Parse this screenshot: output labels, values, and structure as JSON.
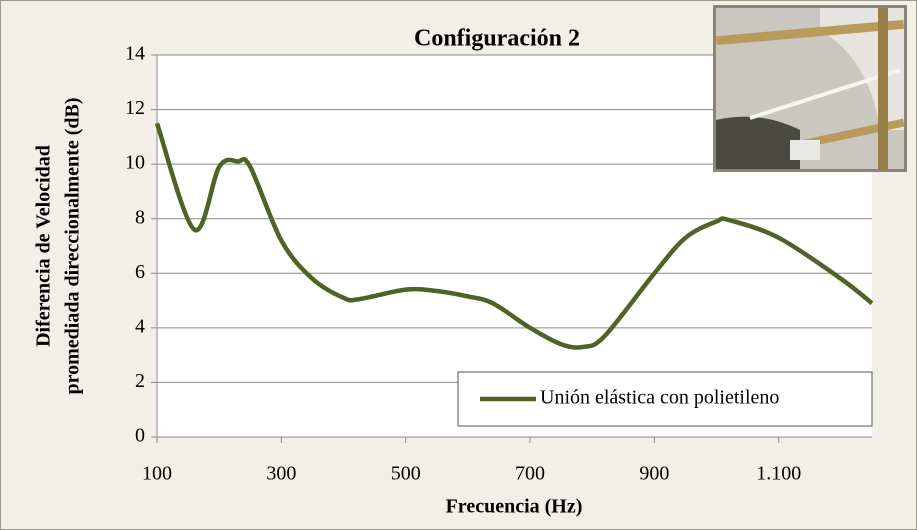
{
  "chart_data": {
    "type": "line",
    "title": "Configuración 2",
    "xlabel": "Frecuencia (Hz)",
    "ylabel": [
      "Diferencia de Velocidad",
      "promediada direccionalmente (dB)"
    ],
    "x": [
      100,
      160,
      200,
      230,
      250,
      300,
      350,
      400,
      425,
      500,
      550,
      600,
      640,
      700,
      750,
      785,
      820,
      900,
      950,
      1000,
      1020,
      1100,
      1200,
      1250
    ],
    "series": [
      {
        "name": "Unión elástica con polietileno",
        "color": "#4f6228",
        "values": [
          11.5,
          7.6,
          9.9,
          10.1,
          9.9,
          7.2,
          5.8,
          5.1,
          5.05,
          5.4,
          5.35,
          5.15,
          4.9,
          4.0,
          3.4,
          3.3,
          3.7,
          6.0,
          7.3,
          7.9,
          7.95,
          7.3,
          5.8,
          4.9
        ]
      }
    ],
    "xlim": [
      100,
      1250
    ],
    "xticks": [
      100,
      300,
      500,
      700,
      900,
      {
        "value": 1100,
        "label": "1.100"
      }
    ],
    "ylim": [
      0,
      14
    ],
    "yticks": [
      0,
      2,
      4,
      6,
      8,
      10,
      12,
      14
    ],
    "grid": true,
    "legend": "lower right"
  }
}
